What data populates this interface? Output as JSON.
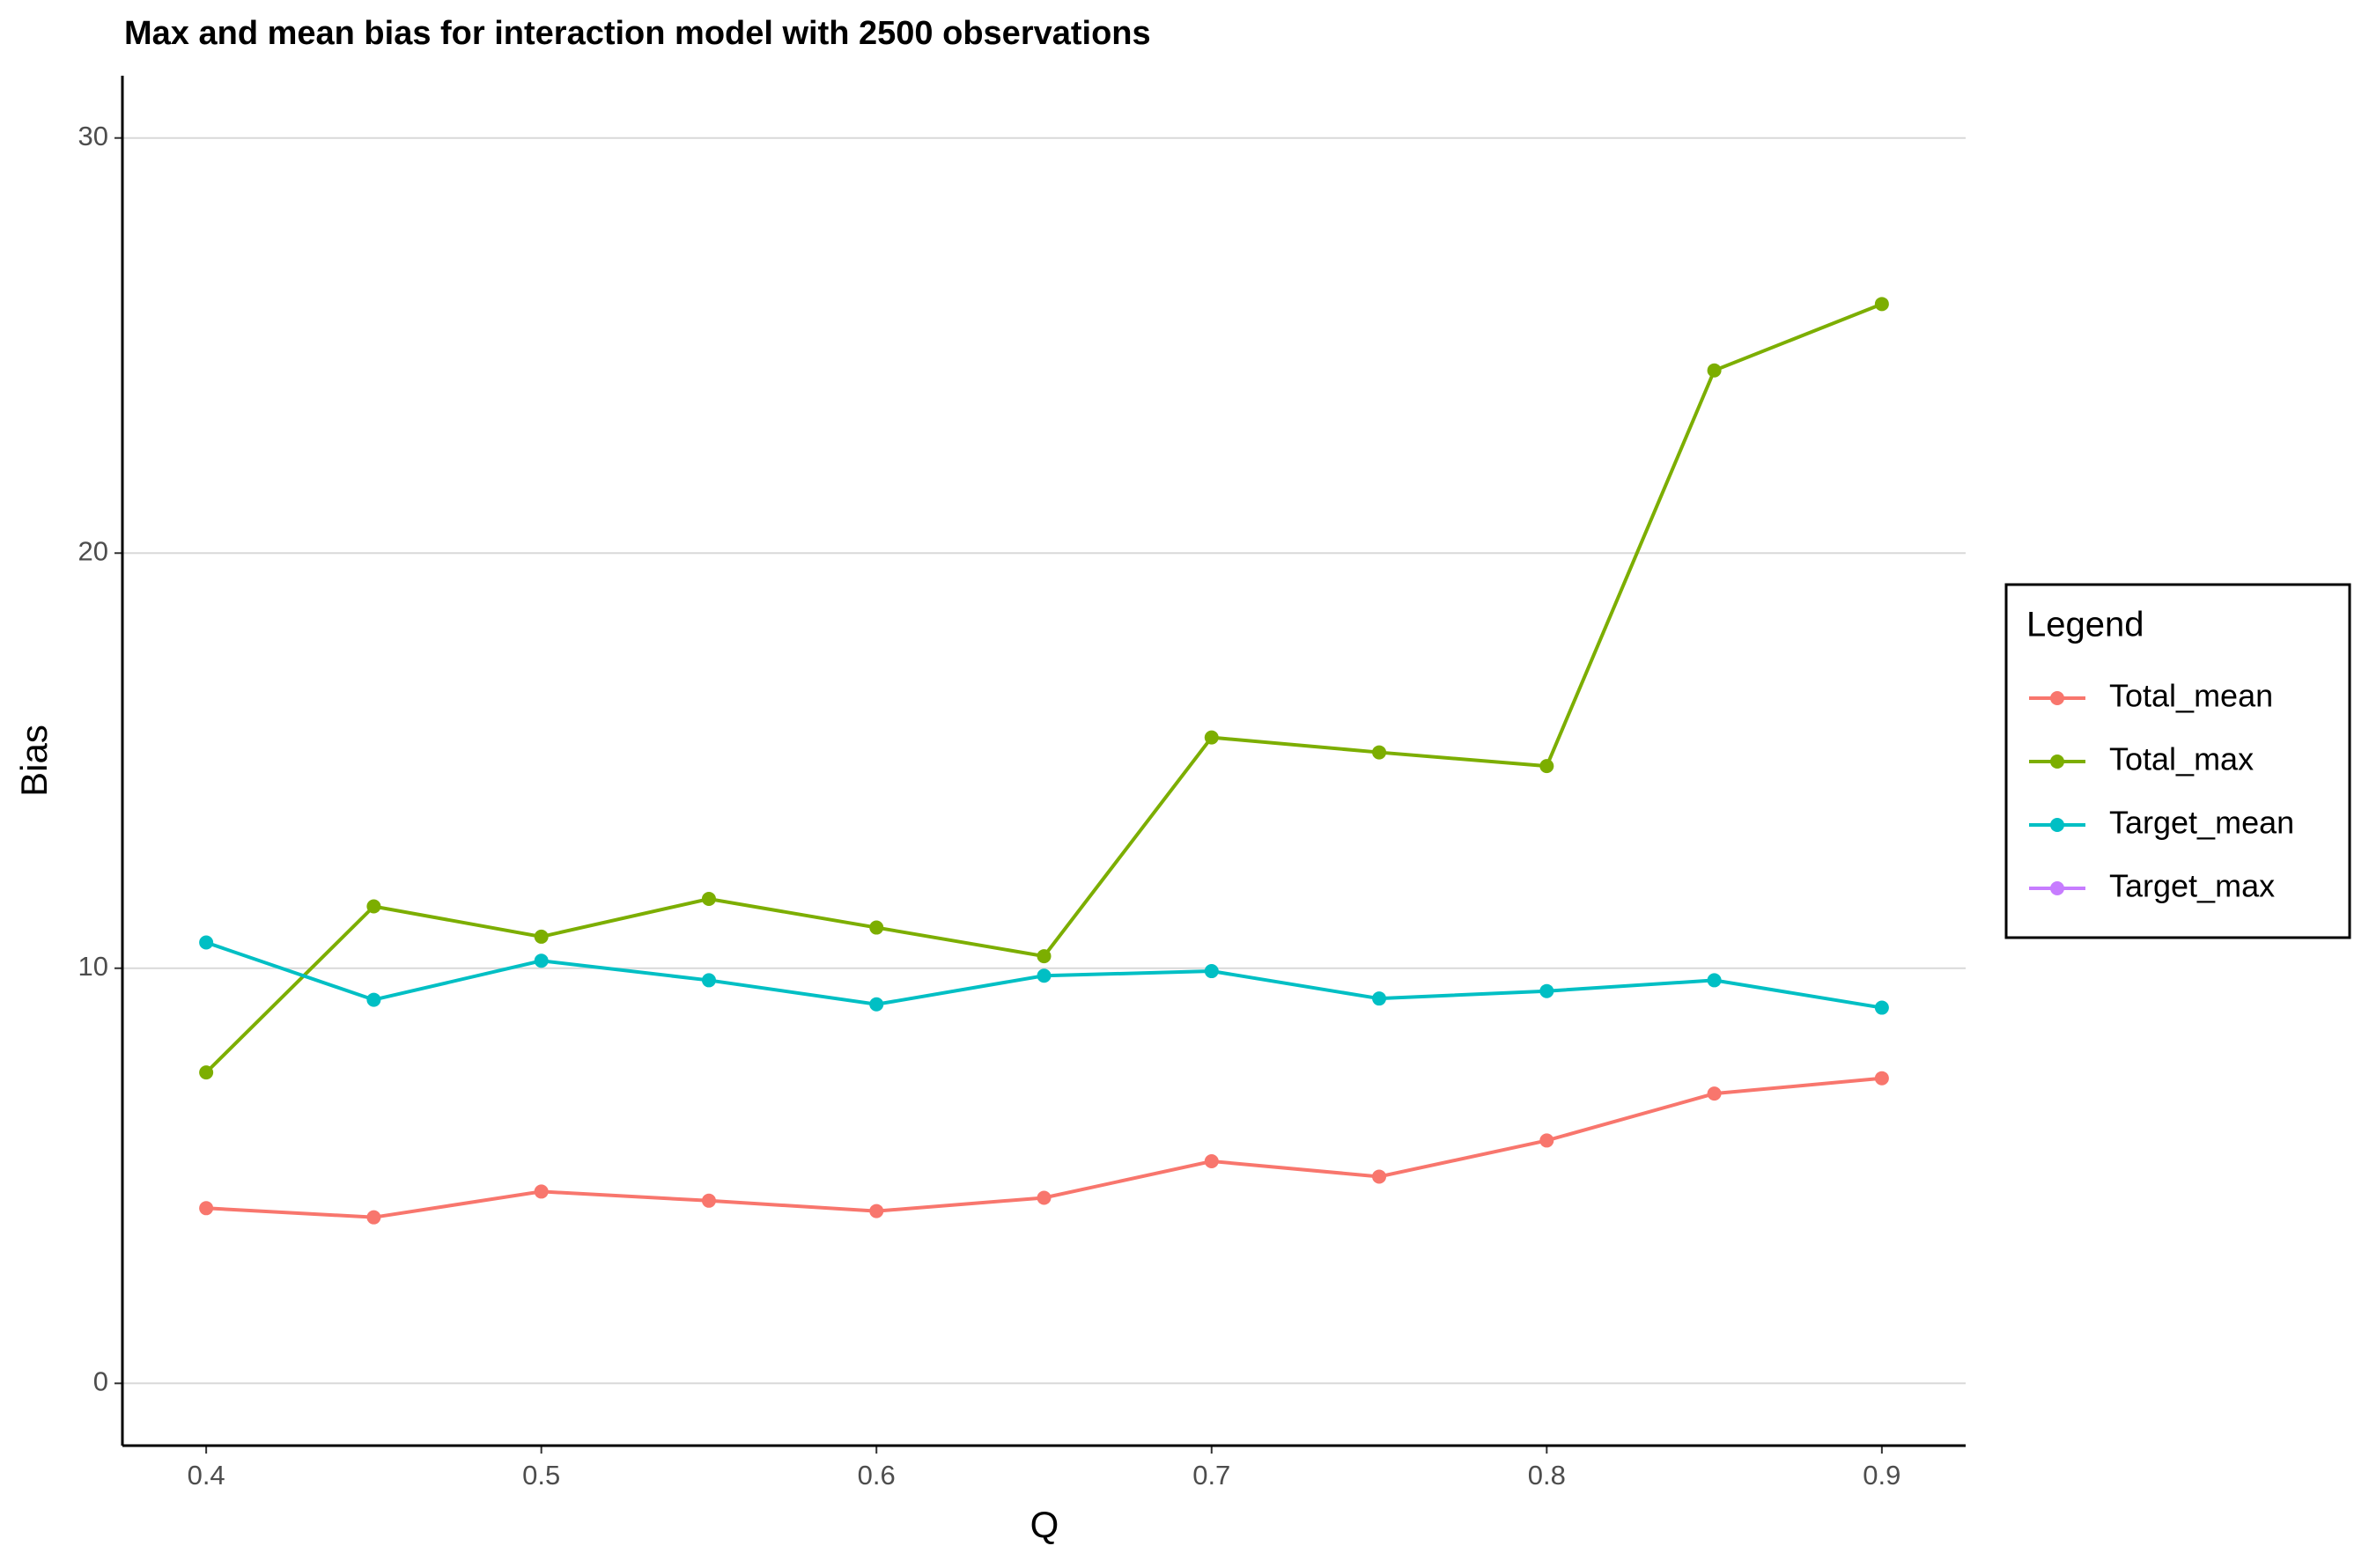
{
  "chart_data": {
    "type": "line",
    "title": "Max and mean bias for interaction model with 2500 observations",
    "x_label": "Q",
    "y_label": "Bias",
    "legend_title": "Legend",
    "legend_position": "right",
    "x": [
      0.4,
      0.45,
      0.5,
      0.55,
      0.6,
      0.65,
      0.7,
      0.75,
      0.8,
      0.85,
      0.9
    ],
    "xlim": [
      0.375,
      0.925
    ],
    "xticks": [
      0.4,
      0.5,
      0.6,
      0.7,
      0.8,
      0.9
    ],
    "ylim": [
      -1.5,
      31.5
    ],
    "yticks": [
      0,
      10,
      20,
      30
    ],
    "grid": true,
    "series": [
      {
        "name": "Total_mean",
        "color": "#F8766D",
        "values": [
          4.22,
          4.0,
          4.62,
          4.4,
          4.15,
          4.47,
          5.35,
          4.98,
          5.85,
          6.98,
          7.35
        ]
      },
      {
        "name": "Total_max",
        "color": "#7CAE00",
        "values": [
          7.49,
          11.49,
          10.76,
          11.67,
          10.98,
          10.29,
          15.56,
          15.2,
          14.87,
          24.4,
          26.0
        ]
      },
      {
        "name": "Target_mean",
        "color": "#00BFC4",
        "values": [
          10.62,
          9.24,
          10.18,
          9.71,
          9.13,
          9.82,
          9.93,
          9.27,
          9.45,
          9.71,
          9.05
        ]
      },
      {
        "name": "Target_max",
        "color": "#C77CFF",
        "values": [
          null,
          null,
          null,
          null,
          null,
          null,
          null,
          null,
          null,
          null,
          null
        ]
      }
    ]
  }
}
